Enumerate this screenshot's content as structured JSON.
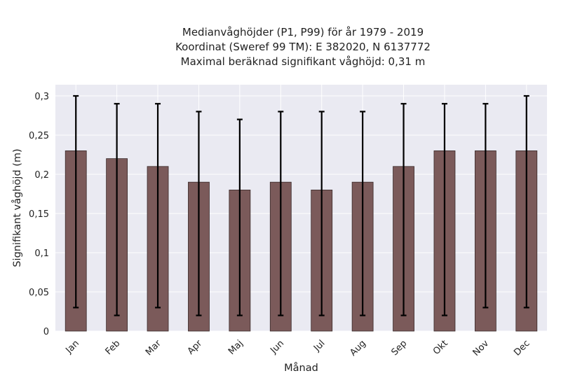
{
  "chart_data": {
    "type": "bar",
    "title_lines": [
      "Medianvåghöjder (P1, P99) för år 1979 - 2019",
      "Koordinat (Sweref 99 TM): E 382020, N 6137772",
      "Maximal beräknad signifikant våghöjd: 0,31 m"
    ],
    "xlabel": "Månad",
    "ylabel": "Signifikant våghöjd (m)",
    "categories": [
      "Jan",
      "Feb",
      "Mar",
      "Apr",
      "Maj",
      "Jun",
      "Jul",
      "Aug",
      "Sep",
      "Okt",
      "Nov",
      "Dec"
    ],
    "values": [
      0.23,
      0.22,
      0.21,
      0.19,
      0.18,
      0.19,
      0.18,
      0.19,
      0.21,
      0.23,
      0.23,
      0.23
    ],
    "error_low": [
      0.03,
      0.02,
      0.03,
      0.02,
      0.02,
      0.02,
      0.02,
      0.02,
      0.02,
      0.02,
      0.03,
      0.03
    ],
    "error_high": [
      0.3,
      0.29,
      0.29,
      0.28,
      0.27,
      0.28,
      0.28,
      0.28,
      0.29,
      0.29,
      0.29,
      0.3
    ],
    "ylim": [
      0,
      0.31
    ],
    "yticks": [
      0,
      0.05,
      0.1,
      0.15,
      0.2,
      0.25,
      0.3
    ],
    "ytick_labels": [
      "0",
      "0,05",
      "0,1",
      "0,15",
      "0,2",
      "0,25",
      "0,3"
    ],
    "grid": true,
    "colors": {
      "bar": "#7b5a5a",
      "bar_edge": "#3a2a2a",
      "errorbar": "#000000",
      "plot_background": "#eaeaf2",
      "grid": "#ffffff"
    }
  }
}
